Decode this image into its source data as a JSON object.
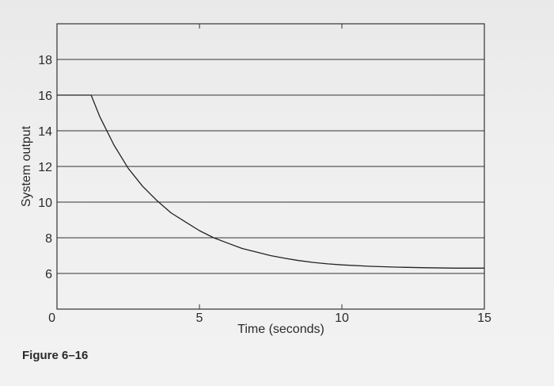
{
  "caption": "Figure 6–16",
  "chart_data": {
    "type": "line",
    "title": "",
    "xlabel": "Time (seconds)",
    "ylabel": "System output",
    "xlim": [
      0,
      15
    ],
    "ylim": [
      4,
      20
    ],
    "x_ticks": [
      "0",
      "5",
      "10",
      "15"
    ],
    "x_tick_values": [
      0,
      5,
      10,
      15
    ],
    "y_ticks": [
      "6",
      "8",
      "10",
      "12",
      "14",
      "16",
      "18"
    ],
    "y_tick_values": [
      6,
      8,
      10,
      12,
      14,
      16,
      18
    ],
    "grid": "horizontal",
    "series": [
      {
        "color": "#222222",
        "x": [
          0,
          1.2,
          1.5,
          2,
          2.5,
          3,
          3.5,
          4,
          4.5,
          5,
          5.5,
          6,
          6.5,
          7,
          7.5,
          8,
          8.5,
          9,
          9.5,
          10,
          11,
          12,
          13,
          14,
          15
        ],
        "y": [
          16,
          16,
          14.8,
          13.2,
          11.9,
          10.9,
          10.1,
          9.4,
          8.9,
          8.4,
          8.0,
          7.7,
          7.4,
          7.2,
          7.0,
          6.85,
          6.72,
          6.62,
          6.54,
          6.48,
          6.4,
          6.35,
          6.32,
          6.3,
          6.3
        ]
      }
    ]
  }
}
